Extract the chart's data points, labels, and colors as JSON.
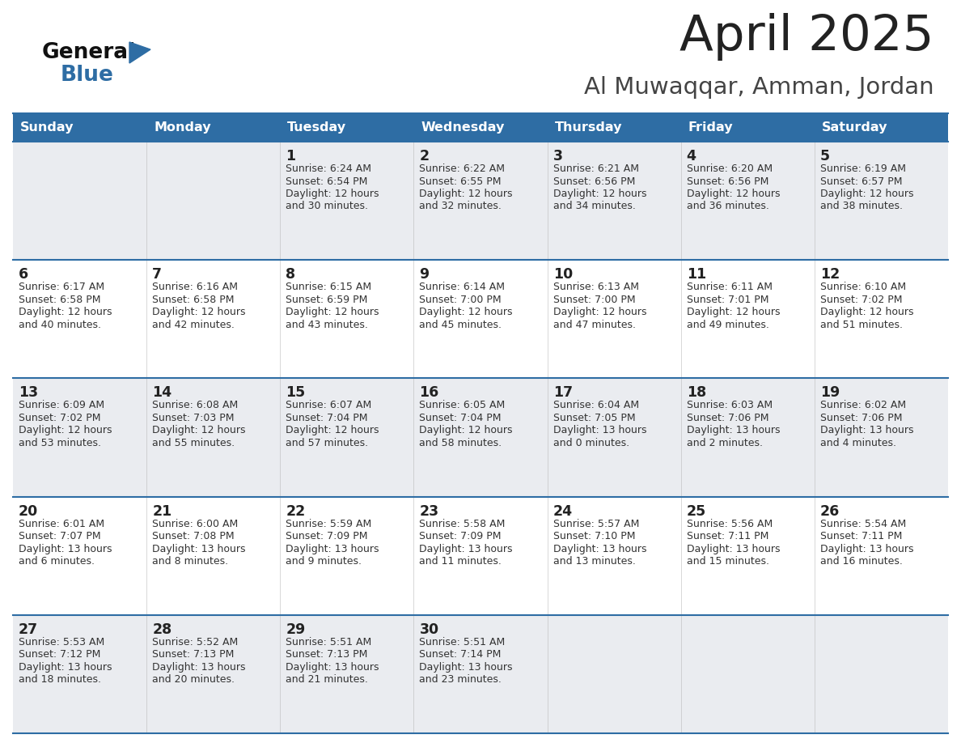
{
  "title": "April 2025",
  "subtitle": "Al Muwaqqar, Amman, Jordan",
  "header_bg": "#2E6DA4",
  "header_text_color": "#FFFFFF",
  "day_names": [
    "Sunday",
    "Monday",
    "Tuesday",
    "Wednesday",
    "Thursday",
    "Friday",
    "Saturday"
  ],
  "row_bg_odd": "#EAECF0",
  "row_bg_even": "#FFFFFF",
  "cell_border_color": "#2E6DA4",
  "day_number_color": "#222222",
  "day_info_color": "#333333",
  "title_color": "#222222",
  "subtitle_color": "#444444",
  "logo_general_color": "#111111",
  "logo_blue_color": "#2E6DA4",
  "calendar_data": [
    [
      {
        "day": null,
        "info": ""
      },
      {
        "day": null,
        "info": ""
      },
      {
        "day": 1,
        "info": "Sunrise: 6:24 AM\nSunset: 6:54 PM\nDaylight: 12 hours\nand 30 minutes."
      },
      {
        "day": 2,
        "info": "Sunrise: 6:22 AM\nSunset: 6:55 PM\nDaylight: 12 hours\nand 32 minutes."
      },
      {
        "day": 3,
        "info": "Sunrise: 6:21 AM\nSunset: 6:56 PM\nDaylight: 12 hours\nand 34 minutes."
      },
      {
        "day": 4,
        "info": "Sunrise: 6:20 AM\nSunset: 6:56 PM\nDaylight: 12 hours\nand 36 minutes."
      },
      {
        "day": 5,
        "info": "Sunrise: 6:19 AM\nSunset: 6:57 PM\nDaylight: 12 hours\nand 38 minutes."
      }
    ],
    [
      {
        "day": 6,
        "info": "Sunrise: 6:17 AM\nSunset: 6:58 PM\nDaylight: 12 hours\nand 40 minutes."
      },
      {
        "day": 7,
        "info": "Sunrise: 6:16 AM\nSunset: 6:58 PM\nDaylight: 12 hours\nand 42 minutes."
      },
      {
        "day": 8,
        "info": "Sunrise: 6:15 AM\nSunset: 6:59 PM\nDaylight: 12 hours\nand 43 minutes."
      },
      {
        "day": 9,
        "info": "Sunrise: 6:14 AM\nSunset: 7:00 PM\nDaylight: 12 hours\nand 45 minutes."
      },
      {
        "day": 10,
        "info": "Sunrise: 6:13 AM\nSunset: 7:00 PM\nDaylight: 12 hours\nand 47 minutes."
      },
      {
        "day": 11,
        "info": "Sunrise: 6:11 AM\nSunset: 7:01 PM\nDaylight: 12 hours\nand 49 minutes."
      },
      {
        "day": 12,
        "info": "Sunrise: 6:10 AM\nSunset: 7:02 PM\nDaylight: 12 hours\nand 51 minutes."
      }
    ],
    [
      {
        "day": 13,
        "info": "Sunrise: 6:09 AM\nSunset: 7:02 PM\nDaylight: 12 hours\nand 53 minutes."
      },
      {
        "day": 14,
        "info": "Sunrise: 6:08 AM\nSunset: 7:03 PM\nDaylight: 12 hours\nand 55 minutes."
      },
      {
        "day": 15,
        "info": "Sunrise: 6:07 AM\nSunset: 7:04 PM\nDaylight: 12 hours\nand 57 minutes."
      },
      {
        "day": 16,
        "info": "Sunrise: 6:05 AM\nSunset: 7:04 PM\nDaylight: 12 hours\nand 58 minutes."
      },
      {
        "day": 17,
        "info": "Sunrise: 6:04 AM\nSunset: 7:05 PM\nDaylight: 13 hours\nand 0 minutes."
      },
      {
        "day": 18,
        "info": "Sunrise: 6:03 AM\nSunset: 7:06 PM\nDaylight: 13 hours\nand 2 minutes."
      },
      {
        "day": 19,
        "info": "Sunrise: 6:02 AM\nSunset: 7:06 PM\nDaylight: 13 hours\nand 4 minutes."
      }
    ],
    [
      {
        "day": 20,
        "info": "Sunrise: 6:01 AM\nSunset: 7:07 PM\nDaylight: 13 hours\nand 6 minutes."
      },
      {
        "day": 21,
        "info": "Sunrise: 6:00 AM\nSunset: 7:08 PM\nDaylight: 13 hours\nand 8 minutes."
      },
      {
        "day": 22,
        "info": "Sunrise: 5:59 AM\nSunset: 7:09 PM\nDaylight: 13 hours\nand 9 minutes."
      },
      {
        "day": 23,
        "info": "Sunrise: 5:58 AM\nSunset: 7:09 PM\nDaylight: 13 hours\nand 11 minutes."
      },
      {
        "day": 24,
        "info": "Sunrise: 5:57 AM\nSunset: 7:10 PM\nDaylight: 13 hours\nand 13 minutes."
      },
      {
        "day": 25,
        "info": "Sunrise: 5:56 AM\nSunset: 7:11 PM\nDaylight: 13 hours\nand 15 minutes."
      },
      {
        "day": 26,
        "info": "Sunrise: 5:54 AM\nSunset: 7:11 PM\nDaylight: 13 hours\nand 16 minutes."
      }
    ],
    [
      {
        "day": 27,
        "info": "Sunrise: 5:53 AM\nSunset: 7:12 PM\nDaylight: 13 hours\nand 18 minutes."
      },
      {
        "day": 28,
        "info": "Sunrise: 5:52 AM\nSunset: 7:13 PM\nDaylight: 13 hours\nand 20 minutes."
      },
      {
        "day": 29,
        "info": "Sunrise: 5:51 AM\nSunset: 7:13 PM\nDaylight: 13 hours\nand 21 minutes."
      },
      {
        "day": 30,
        "info": "Sunrise: 5:51 AM\nSunset: 7:14 PM\nDaylight: 13 hours\nand 23 minutes."
      },
      {
        "day": null,
        "info": ""
      },
      {
        "day": null,
        "info": ""
      },
      {
        "day": null,
        "info": ""
      }
    ]
  ]
}
